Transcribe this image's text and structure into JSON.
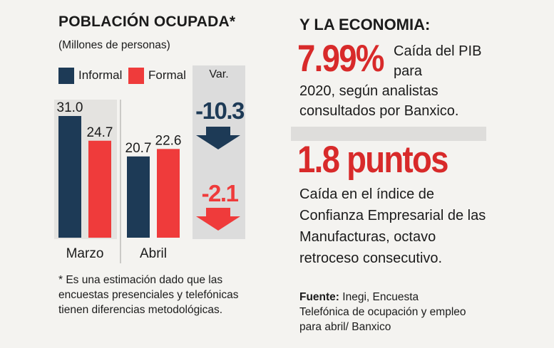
{
  "left": {
    "title": "POBLACIÓN OCUPADA*",
    "subtitle": "(Millones de personas)",
    "var_label": "Var.",
    "footnote": "* Es una estimación dado que las encuestas presenciales y telefónicas tienen diferencias metodológicas."
  },
  "chart_data": {
    "type": "bar",
    "categories": [
      "Marzo",
      "Abril"
    ],
    "series": [
      {
        "name": "Informal",
        "values": [
          31.0,
          20.7
        ],
        "color": "#1d3a56"
      },
      {
        "name": "Formal",
        "values": [
          24.7,
          22.6
        ],
        "color": "#ef3b3b"
      }
    ],
    "data_labels": [
      [
        "31.0",
        "20.7"
      ],
      [
        "24.7",
        "22.6"
      ]
    ],
    "variation": [
      {
        "series": "Informal",
        "value": "-10.3",
        "direction": "down",
        "arrow_color": "#1d3a56"
      },
      {
        "series": "Formal",
        "value": "-2.1",
        "direction": "down",
        "arrow_color": "#ef3b3b"
      }
    ],
    "ylim": [
      0,
      31.0
    ],
    "grid": false,
    "legend_placement": "top"
  },
  "colors": {
    "accent_red": "#d82a2a",
    "navy": "#1d3a56",
    "red": "#ef3b3b"
  },
  "right": {
    "title": "Y LA ECONOMIA:",
    "stat1_value": "7.99%",
    "stat1_desc_a": "Caída del PIB para",
    "stat1_desc_b": "2020, según analistas consultados por Banxico.",
    "stat2_value": "1.8 puntos",
    "stat2_desc": "Caída en el índice de Confianza Empresarial de las Manufacturas, octavo retroceso consecutivo.",
    "source_label": "Fuente:",
    "source_text": "Inegi, Encuesta Telefónica de ocupación y empleo para abril/ Banxico"
  }
}
